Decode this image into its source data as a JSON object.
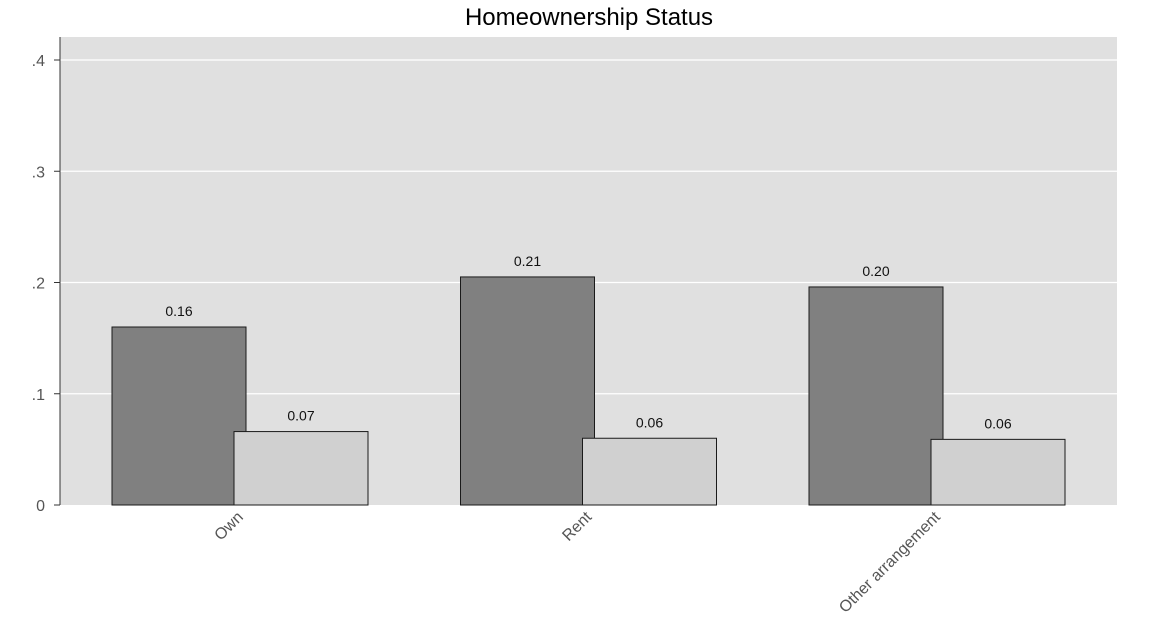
{
  "chart_data": {
    "type": "bar",
    "title": "Homeownership Status",
    "xlabel": "",
    "ylabel": "",
    "categories": [
      "Own",
      "Rent",
      "Other arrangement"
    ],
    "series": [
      {
        "values": [
          0.16,
          0.205,
          0.196
        ],
        "labels": [
          "0.16",
          "0.21",
          "0.20"
        ],
        "color": "#808080"
      },
      {
        "values": [
          0.066,
          0.06,
          0.059
        ],
        "labels": [
          "0.07",
          "0.06",
          "0.06"
        ],
        "color": "#d0d0d0"
      }
    ],
    "ylim": [
      0,
      0.4
    ],
    "yticks": [
      0,
      0.1,
      0.2,
      0.3,
      0.4
    ],
    "ytick_labels": [
      "0",
      ".1",
      ".2",
      ".3",
      ".4"
    ],
    "grid": true,
    "plot_background": "#e0e0e0",
    "legend": "none"
  }
}
